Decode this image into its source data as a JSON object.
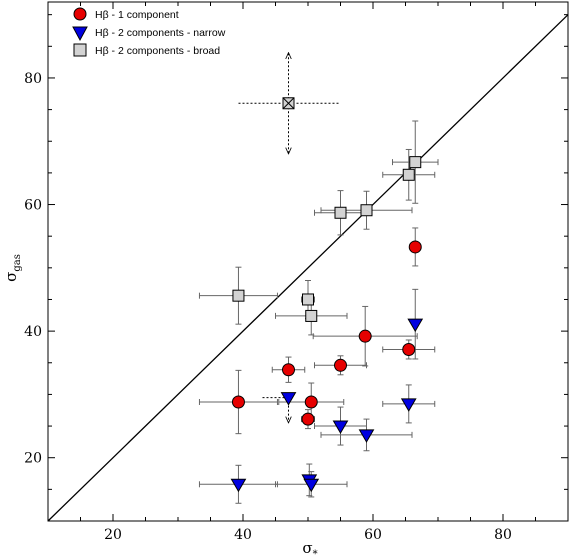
{
  "chart_data": {
    "type": "scatter",
    "xlabel": "σ",
    "xlabel_sub": "*",
    "ylabel": "σ",
    "ylabel_sub": "gas",
    "xlim": [
      10,
      90
    ],
    "ylim": [
      10,
      92
    ],
    "xticks": [
      20,
      40,
      60,
      80
    ],
    "yticks": [
      20,
      40,
      60,
      80
    ],
    "reference_line": "y = x",
    "legend_position": "top-left",
    "colors": {
      "one_component": "#e60000",
      "narrow": "#0000e0",
      "broad": "#d3d3d3",
      "errorbar": "#666666"
    },
    "series": [
      {
        "name": "Hβ - 1 component",
        "marker": "circle",
        "points": [
          {
            "x": 39.3,
            "y": 28.8,
            "xerr": [
              6,
              6
            ],
            "yerr": [
              5,
              5
            ]
          },
          {
            "x": 47.0,
            "y": 33.9,
            "xerr": [
              2.5,
              2.5
            ],
            "yerr": [
              2,
              2
            ]
          },
          {
            "x": 50.0,
            "y": 26.1,
            "xerr": [
              1,
              1
            ],
            "yerr": [
              1.5,
              1.5
            ]
          },
          {
            "x": 50.5,
            "y": 28.8,
            "xerr": [
              5,
              5
            ],
            "yerr": [
              3,
              3
            ]
          },
          {
            "x": 55.0,
            "y": 34.6,
            "xerr": [
              4,
              4
            ],
            "yerr": [
              1.5,
              1.5
            ]
          },
          {
            "x": 58.8,
            "y": 39.2,
            "xerr": [
              8,
              8
            ],
            "yerr": [
              4.7,
              4.7
            ]
          },
          {
            "x": 65.5,
            "y": 37.1,
            "xerr": [
              4,
              4
            ],
            "yerr": [
              1.5,
              1.5
            ]
          },
          {
            "x": 66.5,
            "y": 53.3,
            "xerr": [
              0,
              0
            ],
            "yerr": [
              3,
              3
            ]
          }
        ]
      },
      {
        "name": "Hβ - 2 components - narrow",
        "marker": "triangle-down",
        "points": [
          {
            "x": 39.3,
            "y": 15.8,
            "xerr": [
              6,
              6
            ],
            "yerr": [
              3,
              3
            ]
          },
          {
            "x": 47.0,
            "y": 29.5,
            "xerr": [
              0,
              0
            ],
            "yerr": [
              0,
              0
            ]
          },
          {
            "x": 50.2,
            "y": 16.5,
            "xerr": [
              0,
              0
            ],
            "yerr": [
              2.5,
              2.5
            ]
          },
          {
            "x": 50.5,
            "y": 15.8,
            "xerr": [
              5.5,
              5.5
            ],
            "yerr": [
              2,
              2
            ]
          },
          {
            "x": 55.0,
            "y": 25.0,
            "xerr": [
              4,
              4
            ],
            "yerr": [
              3,
              3
            ]
          },
          {
            "x": 59.0,
            "y": 23.6,
            "xerr": [
              7,
              7
            ],
            "yerr": [
              2.5,
              2.5
            ]
          },
          {
            "x": 65.5,
            "y": 28.5,
            "xerr": [
              4,
              4
            ],
            "yerr": [
              3,
              3
            ]
          },
          {
            "x": 66.5,
            "y": 41.1,
            "xerr": [
              0,
              0
            ],
            "yerr": [
              5.5,
              5.5
            ]
          }
        ]
      },
      {
        "name": "Hβ - 2 components - broad",
        "marker": "square",
        "points": [
          {
            "x": 39.3,
            "y": 45.6,
            "xerr": [
              6,
              6
            ],
            "yerr": [
              4.5,
              4.5
            ]
          },
          {
            "x": 47.0,
            "y": 76.0,
            "xerr": [
              0,
              0
            ],
            "yerr": [
              0,
              0
            ],
            "crossed": true
          },
          {
            "x": 50.0,
            "y": 45.0,
            "xerr": [
              1,
              1
            ],
            "yerr": [
              3,
              3
            ]
          },
          {
            "x": 50.5,
            "y": 42.4,
            "xerr": [
              5.5,
              5.5
            ],
            "yerr": [
              3,
              3
            ]
          },
          {
            "x": 55.0,
            "y": 58.7,
            "xerr": [
              4,
              4
            ],
            "yerr": [
              3.5,
              3.5
            ]
          },
          {
            "x": 59.0,
            "y": 59.1,
            "xerr": [
              7,
              7
            ],
            "yerr": [
              3,
              3
            ]
          },
          {
            "x": 65.5,
            "y": 64.7,
            "xerr": [
              4,
              4
            ],
            "yerr": [
              4,
              4
            ]
          },
          {
            "x": 66.5,
            "y": 66.7,
            "xerr": [
              3.5,
              3.5
            ],
            "yerr": [
              6.5,
              6.5
            ]
          }
        ]
      }
    ],
    "limit_arrows": [
      {
        "x": 47.0,
        "y": 76.0,
        "directions": [
          "up",
          "down",
          "left",
          "right"
        ],
        "ext": 8
      },
      {
        "x": 47.0,
        "y": 29.5,
        "directions": [
          "down",
          "left"
        ],
        "ext": 4
      }
    ]
  }
}
